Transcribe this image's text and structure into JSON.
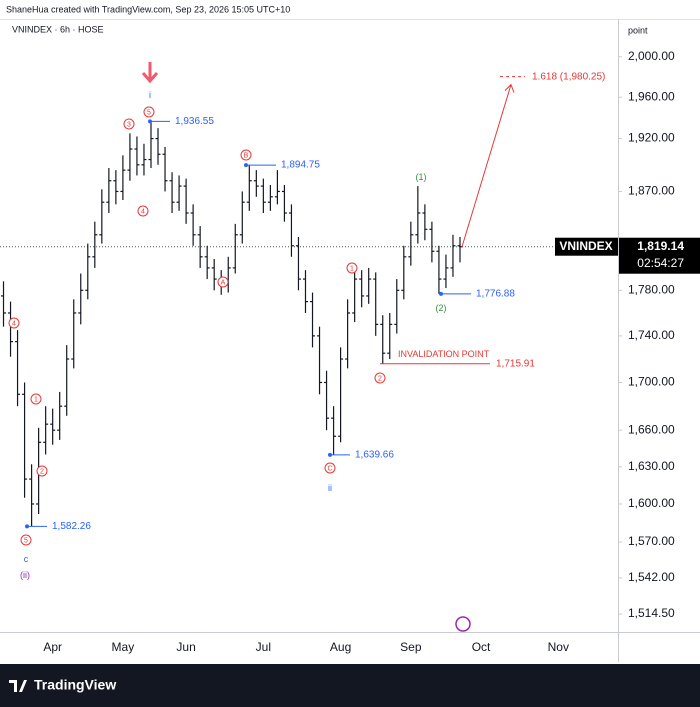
{
  "chart_data": {
    "type": "ohlc",
    "attribution": "ShaneHua created with TradingView.com, Sep 23, 2026 15:05 UTC+10",
    "title": "VNINDEX · 6h · HOSE",
    "y_unit": "point",
    "color": "#131722",
    "log_scale": true,
    "grid": false,
    "ylim": [
      1501,
      2037
    ],
    "yticks": [
      {
        "value": 2000,
        "label": "2,000.00"
      },
      {
        "value": 1960,
        "label": "1,960.00"
      },
      {
        "value": 1920,
        "label": "1,920.00"
      },
      {
        "value": 1870,
        "label": "1,870.00"
      },
      {
        "value": 1780,
        "label": "1,780.00"
      },
      {
        "value": 1740,
        "label": "1,740.00"
      },
      {
        "value": 1700,
        "label": "1,700.00"
      },
      {
        "value": 1660,
        "label": "1,660.00"
      },
      {
        "value": 1630,
        "label": "1,630.00"
      },
      {
        "value": 1600,
        "label": "1,600.00"
      },
      {
        "value": 1570,
        "label": "1,570.00"
      },
      {
        "value": 1542,
        "label": "1,542.00"
      },
      {
        "value": 1514.5,
        "label": "1,514.50"
      }
    ],
    "categories": [
      null,
      null,
      null,
      null,
      null,
      null,
      null,
      "Apr",
      null,
      null,
      null,
      null,
      null,
      null,
      null,
      null,
      null,
      "May",
      null,
      null,
      null,
      null,
      null,
      null,
      null,
      null,
      "Jun",
      null,
      null,
      null,
      null,
      null,
      null,
      null,
      null,
      null,
      null,
      "Jul",
      null,
      null,
      null,
      null,
      null,
      null,
      null,
      null,
      null,
      null,
      "Aug",
      null,
      null,
      null,
      null,
      null,
      null,
      null,
      null,
      null,
      "Sep",
      null,
      null,
      null,
      null,
      null,
      null,
      null,
      null,
      null,
      "Oct",
      null,
      null,
      null,
      null,
      null,
      null,
      null,
      null,
      null,
      null,
      "Nov",
      null,
      null,
      null,
      null,
      null,
      null,
      null,
      null
    ],
    "open": [
      1775,
      1760,
      1735,
      1690,
      1620,
      1600,
      1650,
      1665,
      1660,
      1680,
      1720,
      1760,
      1780,
      1810,
      1830,
      1860,
      1880,
      1870,
      1890,
      1910,
      1895,
      1900,
      1920,
      1905,
      1880,
      1860,
      1875,
      1850,
      1830,
      1810,
      1800,
      1790,
      1785,
      1800,
      1830,
      1860,
      1880,
      1875,
      1860,
      1865,
      1870,
      1850,
      1820,
      1790,
      1770,
      1740,
      1700,
      1670,
      1655,
      1720,
      1760,
      1790,
      1775,
      1790,
      1750,
      1725,
      1750,
      1780,
      1810,
      1830,
      1850,
      1835,
      1815,
      1790,
      1800,
      1820,
      null,
      null,
      null,
      null,
      null,
      null,
      null,
      null,
      null,
      null,
      null,
      null,
      null,
      null,
      null,
      null,
      null,
      null,
      null,
      null,
      null,
      null
    ],
    "high": [
      1788,
      1770,
      1745,
      1700,
      1632,
      1662,
      1680,
      1678,
      1692,
      1732,
      1772,
      1795,
      1822,
      1842,
      1872,
      1892,
      1890,
      1904,
      1925,
      1922,
      1915,
      1936.55,
      1930,
      1912,
      1888,
      1885,
      1882,
      1858,
      1838,
      1820,
      1808,
      1798,
      1810,
      1840,
      1870,
      1894.75,
      1890,
      1882,
      1876,
      1890,
      1876,
      1858,
      1828,
      1798,
      1778,
      1748,
      1710,
      1680,
      1730,
      1772,
      1800,
      1798,
      1800,
      1796,
      1758,
      1760,
      1790,
      1820,
      1842,
      1875,
      1858,
      1842,
      1820,
      1812,
      1830,
      1828,
      null,
      null,
      null,
      null,
      null,
      null,
      null,
      null,
      null,
      null,
      null,
      null,
      null,
      null,
      null,
      null,
      null,
      null,
      null,
      null,
      null,
      null
    ],
    "low": [
      1748,
      1722,
      1680,
      1605,
      1582.26,
      1592,
      1640,
      1648,
      1652,
      1672,
      1712,
      1750,
      1772,
      1800,
      1822,
      1850,
      1858,
      1862,
      1880,
      1885,
      1885,
      1892,
      1895,
      1870,
      1850,
      1852,
      1840,
      1820,
      1800,
      1790,
      1780,
      1776,
      1778,
      1795,
      1822,
      1852,
      1865,
      1850,
      1852,
      1858,
      1842,
      1810,
      1780,
      1760,
      1730,
      1690,
      1660,
      1639.66,
      1650,
      1712,
      1752,
      1765,
      1768,
      1740,
      1715.91,
      1720,
      1742,
      1772,
      1802,
      1822,
      1825,
      1805,
      1776.88,
      1782,
      1792,
      1805,
      null,
      null,
      null,
      null,
      null,
      null,
      null,
      null,
      null,
      null,
      null,
      null,
      null,
      null,
      null,
      null,
      null,
      null,
      null,
      null,
      null,
      null
    ],
    "close": [
      1760,
      1735,
      1690,
      1620,
      1600,
      1650,
      1665,
      1660,
      1680,
      1720,
      1760,
      1780,
      1810,
      1830,
      1860,
      1880,
      1870,
      1890,
      1910,
      1895,
      1900,
      1920,
      1905,
      1880,
      1860,
      1875,
      1850,
      1830,
      1810,
      1800,
      1790,
      1785,
      1800,
      1830,
      1860,
      1880,
      1875,
      1860,
      1865,
      1870,
      1850,
      1820,
      1790,
      1770,
      1740,
      1700,
      1670,
      1655,
      1720,
      1760,
      1790,
      1775,
      1790,
      1750,
      1725,
      1750,
      1780,
      1810,
      1830,
      1850,
      1835,
      1815,
      1790,
      1800,
      1820,
      1819.14,
      null,
      null,
      null,
      null,
      null,
      null,
      null,
      null,
      null,
      null,
      null,
      null,
      null,
      null,
      null,
      null,
      null,
      null,
      null,
      null,
      null,
      null
    ],
    "last": {
      "name": "VNINDEX",
      "value": 1819.14,
      "label": "1,819.14",
      "countdown": "02:54:27"
    },
    "price_labels": [
      {
        "value": 1936.55,
        "label": "1,936.55"
      },
      {
        "value": 1894.75,
        "label": "1,894.75"
      },
      {
        "value": 1639.66,
        "label": "1,639.66"
      },
      {
        "value": 1582.26,
        "label": "1,582.26"
      },
      {
        "value": 1776.88,
        "label": "1,776.88"
      }
    ],
    "invalidation": {
      "text": "INVALIDATION POINT",
      "value": 1715.91,
      "label": "1,715.91"
    },
    "target": {
      "value": 1980.25,
      "label": "1.618 (1,980.25)"
    },
    "annotations": [
      {
        "text": "3",
        "color": "#e53935",
        "circled": true
      },
      {
        "text": "5",
        "color": "#e53935",
        "circled": true
      },
      {
        "text": "4",
        "color": "#e53935",
        "circled": true
      },
      {
        "text": "B",
        "color": "#e53935",
        "circled": true
      },
      {
        "text": "A",
        "color": "#e53935",
        "circled": true
      },
      {
        "text": "1",
        "color": "#e53935",
        "circled": true
      },
      {
        "text": "2",
        "color": "#e53935",
        "circled": true
      },
      {
        "text": "C",
        "color": "#e53935",
        "circled": true
      },
      {
        "text": "1",
        "color": "#e53935",
        "circled": true
      },
      {
        "text": "2",
        "color": "#e53935",
        "circled": true
      },
      {
        "text": "4",
        "color": "#e53935",
        "circled": true
      },
      {
        "text": "5",
        "color": "#e53935",
        "circled": true
      },
      {
        "text": "i",
        "color": "#2962ff",
        "circled": false
      },
      {
        "text": "ii",
        "color": "#2962ff",
        "circled": false
      },
      {
        "text": "c",
        "color": "#2962ff",
        "circled": false
      },
      {
        "text": "(ii)",
        "color": "#9c27b0",
        "circled": false
      },
      {
        "text": "(1)",
        "color": "#388e3c",
        "circled": false
      },
      {
        "text": "(2)",
        "color": "#388e3c",
        "circled": false
      }
    ],
    "footer": "TradingView"
  }
}
